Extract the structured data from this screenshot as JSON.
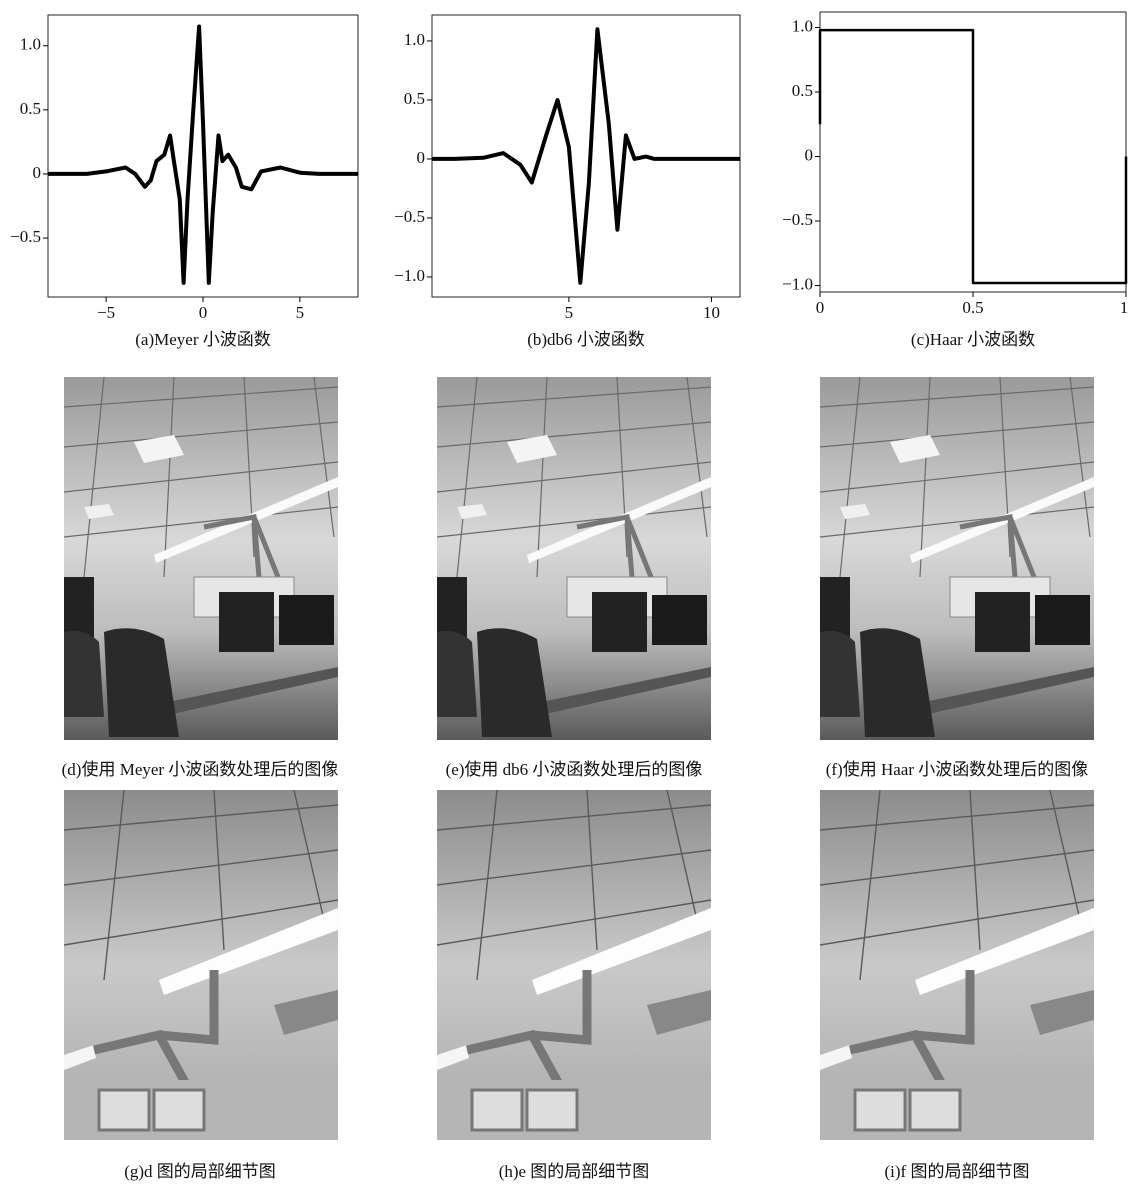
{
  "chart_data": [
    {
      "type": "line",
      "caption": "(a)Meyer 小波函数",
      "color": "#000000",
      "x": [
        -8,
        -6,
        -5,
        -4,
        -3.5,
        -3,
        -2.7,
        -2.4,
        -2,
        -1.7,
        -1.5,
        -1.2,
        -1,
        -0.8,
        -0.5,
        -0.2,
        0,
        0.3,
        0.5,
        0.8,
        1,
        1.3,
        1.7,
        2,
        2.5,
        3,
        4,
        5,
        6,
        8
      ],
      "values": [
        0,
        0,
        0.02,
        0.05,
        0,
        -0.1,
        -0.05,
        0.1,
        0.15,
        0.3,
        0.1,
        -0.2,
        -0.85,
        -0.2,
        0.5,
        1.15,
        0.4,
        -0.85,
        -0.3,
        0.3,
        0.1,
        0.15,
        0.05,
        -0.1,
        -0.12,
        0.02,
        0.05,
        0.01,
        0,
        0
      ],
      "xlim": [
        -8,
        8
      ],
      "ylim": [
        -0.96,
        1.24
      ],
      "xticks": [
        {
          "value": -5,
          "label": "−5"
        },
        0,
        5
      ],
      "yticks": [
        {
          "value": -0.5,
          "label": "−0.5"
        },
        0,
        0.5,
        {
          "value": 1,
          "label": "1.0"
        }
      ]
    },
    {
      "type": "line",
      "caption": "(b)db6 小波函数",
      "color": "#000000",
      "x": [
        0.2,
        1,
        2,
        2.7,
        3.3,
        3.7,
        4.2,
        4.6,
        5,
        5.4,
        5.7,
        6,
        6.4,
        6.7,
        7,
        7.3,
        7.7,
        8,
        9,
        11
      ],
      "values": [
        0,
        0,
        0.01,
        0.05,
        -0.05,
        -0.2,
        0.2,
        0.5,
        0.1,
        -1.05,
        -0.2,
        1.1,
        0.3,
        -0.6,
        0.2,
        0,
        0.02,
        0,
        0,
        0
      ],
      "xlim": [
        0.2,
        11
      ],
      "ylim": [
        -1.17,
        1.22
      ],
      "xticks": [
        5,
        10
      ],
      "yticks": [
        {
          "value": -1,
          "label": "−1.0"
        },
        {
          "value": -0.5,
          "label": "−0.5"
        },
        0,
        0.5,
        {
          "value": 1,
          "label": "1.0"
        }
      ]
    },
    {
      "type": "line",
      "caption": "(c)Haar 小波函数",
      "color": "#000000",
      "x": [
        0,
        0,
        0.5,
        0.5,
        1,
        1
      ],
      "values": [
        0.25,
        0.98,
        0.98,
        -0.98,
        -0.98,
        0
      ],
      "xlim": [
        0,
        1
      ],
      "ylim": [
        -1.05,
        1.12
      ],
      "xticks": [
        0,
        0.5,
        1
      ],
      "yticks": [
        {
          "value": -1,
          "label": "−1.0"
        },
        {
          "value": -0.5,
          "label": "−0.5"
        },
        0,
        0.5,
        {
          "value": 1,
          "label": "1.0"
        }
      ]
    }
  ],
  "panels": [
    {
      "caption": "(d)使用 Meyer 小波函数处理后的图像"
    },
    {
      "caption": "(e)使用 db6 小波函数处理后的图像"
    },
    {
      "caption": "(f)使用 Haar 小波函数处理后的图像"
    },
    {
      "caption": "(g)d 图的局部细节图"
    },
    {
      "caption": "(h)e 图的局部细节图"
    },
    {
      "caption": "(i)f 图的局部细节图"
    }
  ]
}
